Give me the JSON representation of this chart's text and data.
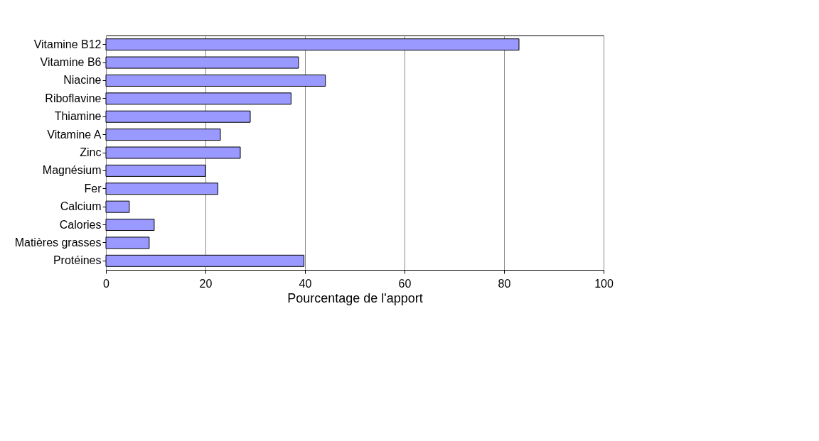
{
  "chart_data": {
    "type": "bar",
    "orientation": "horizontal",
    "xlabel": "Pourcentage de l'apport",
    "categories": [
      "Vitamine B12",
      "Vitamine B6",
      "Niacine",
      "Riboflavine",
      "Thiamine",
      "Vitamine A",
      "Zinc",
      "Magnésium",
      "Fer",
      "Calcium",
      "Calories",
      "Matières grasses",
      "Protéines"
    ],
    "values": [
      83,
      38.7,
      44.1,
      37.2,
      29,
      23,
      27,
      20,
      22.5,
      4.7,
      9.7,
      8.7,
      39.8
    ],
    "color": "#9999ff",
    "xlim": [
      0,
      100
    ],
    "xticks": [
      0,
      20,
      40,
      60,
      80,
      100
    ],
    "grid": "x"
  }
}
